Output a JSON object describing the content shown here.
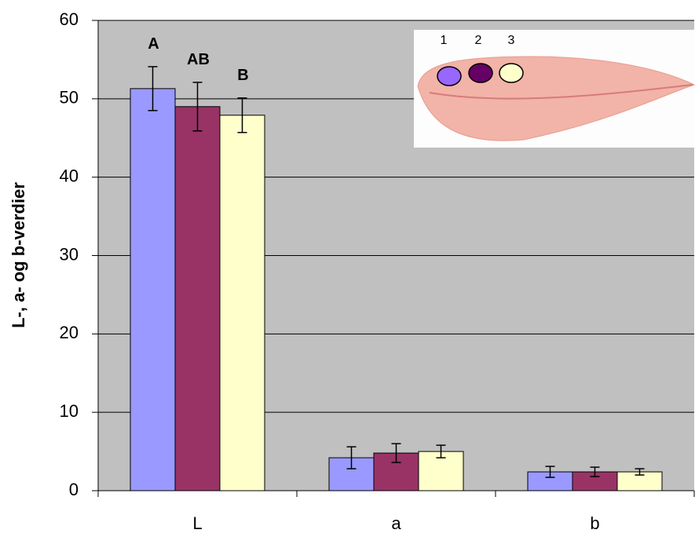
{
  "chart_data": {
    "type": "bar",
    "y_label": "L-, a- og b-verdier",
    "categories": [
      "L",
      "a",
      "b"
    ],
    "series": [
      {
        "name": "1",
        "color": "#9999ff",
        "values": [
          51.3,
          4.2,
          2.4
        ],
        "errors": [
          2.8,
          1.4,
          0.7
        ]
      },
      {
        "name": "2",
        "color": "#993366",
        "values": [
          49.0,
          4.8,
          2.4
        ],
        "errors": [
          3.1,
          1.2,
          0.6
        ]
      },
      {
        "name": "3",
        "color": "#ffffcc",
        "values": [
          47.9,
          5.0,
          2.4
        ],
        "errors": [
          2.2,
          0.8,
          0.4
        ]
      }
    ],
    "annotations": [
      {
        "text": "A",
        "series": 0,
        "category": 0
      },
      {
        "text": "AB",
        "series": 1,
        "category": 0
      },
      {
        "text": "B",
        "series": 2,
        "category": 0
      }
    ],
    "ylim": [
      0,
      60
    ],
    "yticks": [
      0,
      10,
      20,
      30,
      40,
      50,
      60
    ],
    "grid": true,
    "background": "#c0c0c0"
  }
}
